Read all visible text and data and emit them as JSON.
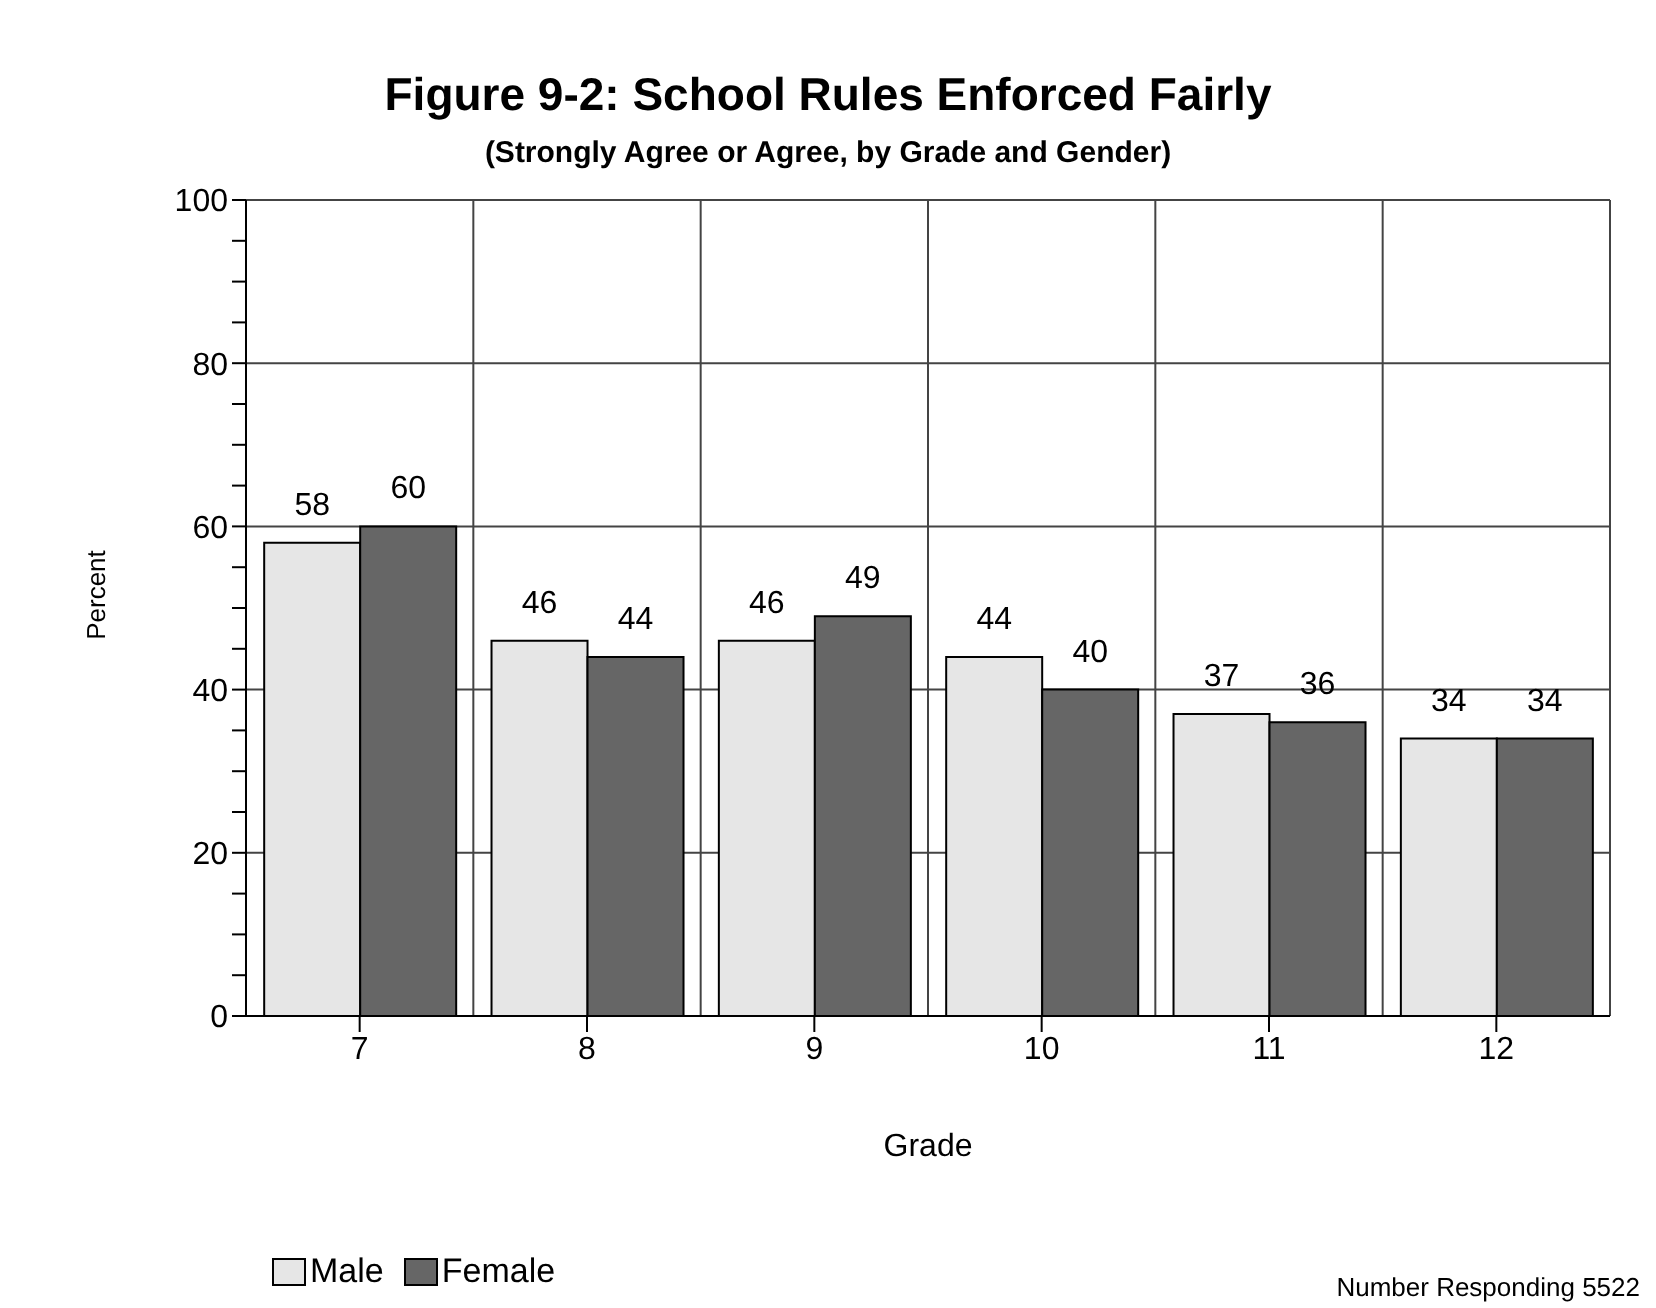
{
  "chart_data": {
    "type": "bar",
    "title": "Figure 9-2: School Rules Enforced Fairly",
    "subtitle": "(Strongly Agree or Agree, by Grade and Gender)",
    "xlabel": "Grade",
    "ylabel": "Percent",
    "categories": [
      "7",
      "8",
      "9",
      "10",
      "11",
      "12"
    ],
    "series": [
      {
        "name": "Male",
        "color": "#e6e6e6",
        "values": [
          58,
          46,
          46,
          44,
          37,
          34
        ]
      },
      {
        "name": "Female",
        "color": "#666666",
        "values": [
          60,
          44,
          49,
          40,
          36,
          34
        ]
      }
    ],
    "ylim": [
      0,
      100
    ],
    "yticks": [
      0,
      {
        "value": 5,
        "label": null
      },
      {
        "value": 10,
        "label": null
      },
      {
        "value": 15,
        "label": null
      },
      20,
      {
        "value": 25,
        "label": null
      },
      {
        "value": 30,
        "label": null
      },
      {
        "value": 35,
        "label": null
      },
      40,
      {
        "value": 45,
        "label": null
      },
      {
        "value": 50,
        "label": null
      },
      {
        "value": 55,
        "label": null
      },
      60,
      {
        "value": 65,
        "label": null
      },
      {
        "value": 70,
        "label": null
      },
      {
        "value": 75,
        "label": null
      },
      80,
      {
        "value": 85,
        "label": null
      },
      {
        "value": 90,
        "label": null
      },
      {
        "value": 95,
        "label": null
      },
      100
    ],
    "grid": true,
    "legend": "bottom left",
    "data_labels": true,
    "annotations": [
      "Number Responding 5522"
    ]
  }
}
